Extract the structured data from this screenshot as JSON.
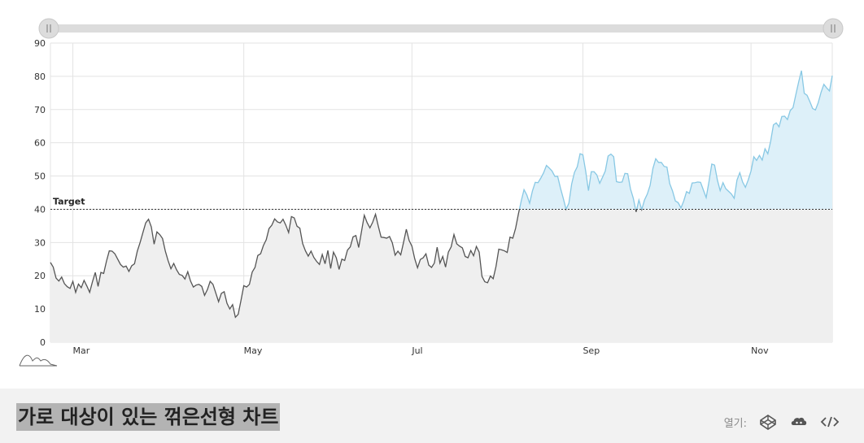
{
  "chart_data": {
    "type": "area",
    "title": "",
    "xlabel": "",
    "ylabel": "",
    "ylim": [
      0,
      90
    ],
    "y_ticks": [
      "0",
      "10",
      "20",
      "30",
      "40",
      "50",
      "60",
      "70",
      "80",
      "90"
    ],
    "x_tick_labels": [
      "Mar",
      "May",
      "Jul",
      "Sep",
      "Nov"
    ],
    "x_tick_index": [
      8,
      69,
      129,
      190,
      250
    ],
    "grid": true,
    "target": {
      "value": 40,
      "label": "Target"
    },
    "colors": {
      "below_line": "#555555",
      "below_fill": "#efefef",
      "above_line": "#88c8e4",
      "above_fill": "#ddf0f9",
      "target_line": "#333333"
    },
    "range_slider": {
      "start": 0,
      "end": 1
    },
    "series": [
      {
        "values": [
          24,
          22.6,
          19.3,
          18.4,
          19.6,
          17.6,
          16.7,
          16.2,
          18.3,
          15,
          17.5,
          16.4,
          18.6,
          16.9,
          15,
          18.2,
          21,
          16.8,
          21,
          20.7,
          24.4,
          27.5,
          27.4,
          26.6,
          25,
          23.4,
          22.6,
          22.9,
          21.3,
          23,
          23.6,
          27.4,
          30,
          33,
          35.9,
          37,
          34.7,
          29.5,
          33.2,
          32.4,
          31.2,
          27.4,
          24.5,
          22.1,
          23.7,
          21.8,
          20.4,
          20.1,
          19,
          21.2,
          18.4,
          16.6,
          17.2,
          17.4,
          16.8,
          14.1,
          15.8,
          18.3,
          17.4,
          14.8,
          12.2,
          14.7,
          15.2,
          11.7,
          10,
          11.3,
          7.5,
          8.4,
          12.6,
          17,
          16.6,
          17.4,
          21.1,
          22.5,
          26.1,
          26.6,
          29.1,
          30.8,
          34.2,
          35.2,
          37.1,
          36.2,
          35.9,
          37,
          35.2,
          33,
          37.8,
          37.4,
          34.9,
          34.3,
          29.7,
          27.5,
          25.9,
          27.4,
          25.5,
          24.3,
          23.4,
          26.4,
          23.6,
          27.6,
          22.2,
          27.1,
          25.4,
          21.9,
          25,
          24.6,
          27.7,
          28.7,
          31.7,
          32.1,
          28.5,
          33.3,
          38.2,
          36,
          34.4,
          36.1,
          38.5,
          34.9,
          31.6,
          31.5,
          31.3,
          31.8,
          29.9,
          26.2,
          27.4,
          26.3,
          30,
          34,
          30.6,
          28.9,
          25.1,
          22.4,
          24.9,
          25.4,
          26.6,
          23.2,
          22.5,
          23.8,
          28.6,
          23.8,
          25.8,
          22.6,
          27.1,
          28.7,
          32.4,
          29.6,
          28.9,
          28.4,
          25.8,
          25.4,
          27.6,
          26,
          28.8,
          27.1,
          19.8,
          18.2,
          17.9,
          19.9,
          19.1,
          22.8,
          28,
          27.8,
          27.5,
          27,
          31.6,
          31.3,
          34.3,
          38.6,
          42.5,
          45.9,
          44.3,
          41.8,
          45.5,
          48.1,
          48,
          49.4,
          51,
          53.2,
          52.4,
          51.5,
          49.9,
          49.9,
          46.4,
          43.3,
          40,
          41.8,
          47.6,
          51.1,
          52.8,
          56.7,
          56.4,
          51.5,
          45.6,
          51.3,
          51.3,
          50.3,
          47.8,
          49.6,
          51.5,
          56,
          56.6,
          55.8,
          48.3,
          48.1,
          48.2,
          50.8,
          50.7,
          46.1,
          43.3,
          39.2,
          42.8,
          39.9,
          42.8,
          44.6,
          47.2,
          52.3,
          55.2,
          54.1,
          54.1,
          52.9,
          52.7,
          47.7,
          45.5,
          42.5,
          42,
          40.4,
          42.5,
          45.3,
          44.8,
          47.9,
          48,
          48.2,
          48.1,
          45.8,
          43.5,
          48.3,
          53.6,
          53.3,
          48.8,
          45.6,
          48,
          46.2,
          45.4,
          44.6,
          43.3,
          48.8,
          51,
          48.2,
          46.6,
          48.8,
          51.5,
          55.8,
          54.7,
          56.2,
          54.8,
          58.2,
          56.7,
          60.4,
          65.4,
          66,
          64.8,
          67.9,
          68,
          67,
          69.7,
          70.6,
          74.5,
          78.3,
          81.7,
          74.9,
          74.3,
          72.4,
          70.3,
          69.9,
          72.1,
          75.2,
          77.6,
          76.5,
          75.6,
          80.2
        ]
      }
    ]
  },
  "footer": {
    "title": "가로 대상이 있는 꺾은선형 차트",
    "open_label": "열기:",
    "icons": [
      "codepen-icon",
      "codesandbox-icon",
      "code-icon"
    ]
  }
}
